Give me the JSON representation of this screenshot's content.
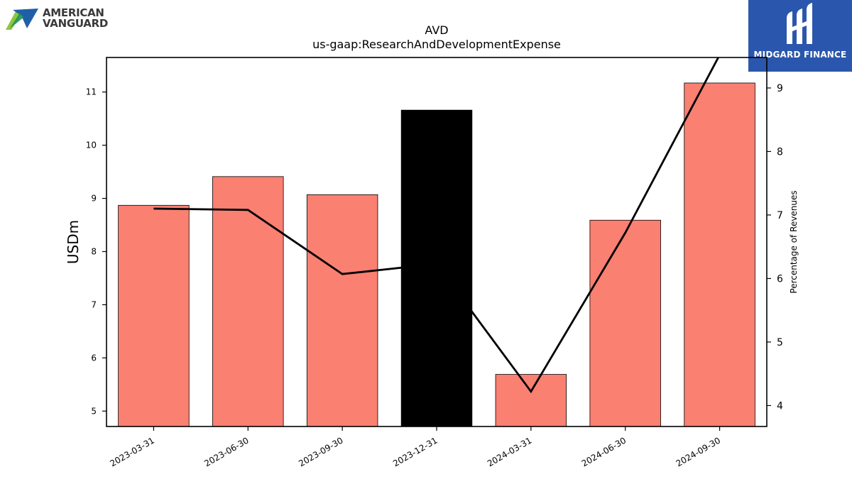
{
  "brand": {
    "line1": "AMERICAN",
    "line2": "VANGUARD",
    "icon": "american-vanguard-logo-icon"
  },
  "partner": {
    "name": "MIDGARD FINANCE",
    "icon": "midgard-finance-logo-icon",
    "color": "#2a57ad"
  },
  "chart_data": {
    "type": "bar",
    "title": "AVD",
    "subtitle": "us-gaap:ResearchAndDevelopmentExpense",
    "categories": [
      "2023-03-31",
      "2023-06-30",
      "2023-09-30",
      "2023-12-31",
      "2024-03-31",
      "2024-06-30",
      "2024-09-30"
    ],
    "series": [
      {
        "type": "bar",
        "axis": "left",
        "values": [
          8.87,
          9.41,
          9.07,
          10.66,
          5.69,
          8.59,
          11.17
        ],
        "colors": [
          "#fa8072",
          "#fa8072",
          "#fa8072",
          "#000000",
          "#fa8072",
          "#fa8072",
          "#fa8072"
        ]
      },
      {
        "type": "line",
        "axis": "right",
        "values": [
          7.1,
          7.08,
          6.07,
          6.23,
          4.22,
          6.72,
          9.52
        ],
        "color": "#000000"
      }
    ],
    "ylabel": "USDm",
    "ylabel_right": "Percentage of Revenues",
    "ylim": [
      4.71,
      11.65
    ],
    "ylim_right": [
      3.67,
      9.48
    ],
    "yticks": [
      5,
      6,
      7,
      8,
      9,
      10,
      11
    ],
    "yticks_right": [
      4,
      5,
      6,
      7,
      8,
      9
    ],
    "grid": false,
    "legend": "none"
  }
}
